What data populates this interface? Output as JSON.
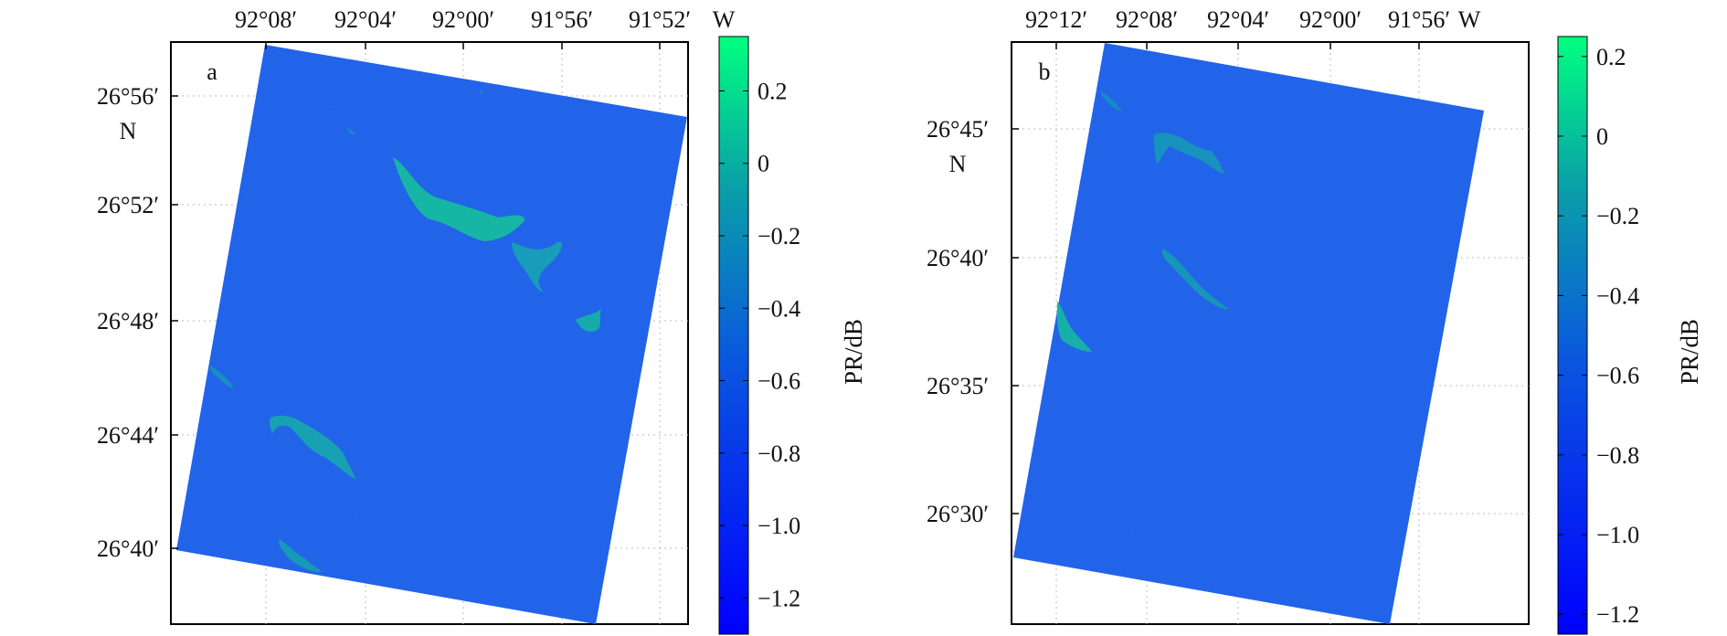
{
  "chart_data": [
    {
      "type": "heatmap",
      "panel_label": "a",
      "top_axis_ticks": [
        "92°08′",
        "92°04′",
        "92°00′",
        "91°56′",
        "91°52′"
      ],
      "top_axis_unit": "W",
      "left_axis_ticks": [
        "26°56′",
        "26°52′",
        "26°48′",
        "26°44′",
        "26°40′"
      ],
      "left_axis_unit": "N",
      "colorbar": {
        "label": "PR/dB",
        "ticks": [
          "0.2",
          "0",
          "−0.2",
          "−0.4",
          "−0.6",
          "−0.8",
          "−1.0",
          "−1.2"
        ],
        "tick_values": [
          0.2,
          0,
          -0.2,
          -0.4,
          -0.6,
          -0.8,
          -1.0,
          -1.2
        ],
        "range": [
          -1.3,
          0.35
        ],
        "colors": [
          "#0000ff",
          "#00ff80"
        ]
      },
      "background_value": -0.7
    },
    {
      "type": "heatmap",
      "panel_label": "b",
      "top_axis_ticks": [
        "92°12′",
        "92°08′",
        "92°04′",
        "92°00′",
        "91°56′"
      ],
      "top_axis_unit": "W",
      "left_axis_ticks": [
        "26°45′",
        "26°40′",
        "26°35′",
        "26°30′"
      ],
      "left_axis_unit": "N",
      "colorbar": {
        "label": "PR/dB",
        "ticks": [
          "0.2",
          "0",
          "−0.2",
          "−0.4",
          "−0.6",
          "−0.8",
          "−1.0",
          "−1.2"
        ],
        "tick_values": [
          0.2,
          0,
          -0.2,
          -0.4,
          -0.6,
          -0.8,
          -1.0,
          -1.2
        ],
        "range": [
          -1.25,
          0.25
        ],
        "colors": [
          "#0000ff",
          "#00ff80"
        ]
      },
      "background_value": -0.7
    }
  ]
}
